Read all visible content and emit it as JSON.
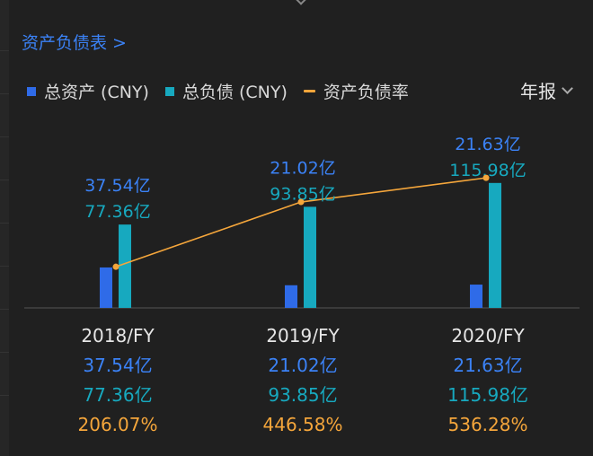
{
  "section": {
    "title": "资产负债表 >",
    "period_selector": "年报"
  },
  "legend": [
    {
      "label": "总资产 (CNY)",
      "color": "#2f6be8",
      "kind": "bar"
    },
    {
      "label": "总负债 (CNY)",
      "color": "#17a9bf",
      "kind": "bar"
    },
    {
      "label": "资产负债率",
      "color": "#f5a63b",
      "kind": "line"
    }
  ],
  "chart_data": {
    "type": "bar",
    "categories": [
      "2018/FY",
      "2019/FY",
      "2020/FY"
    ],
    "series": [
      {
        "name": "总资产 (CNY)",
        "values": [
          37.54,
          21.02,
          21.63
        ],
        "labels": [
          "37.54亿",
          "21.02亿",
          "21.63亿"
        ],
        "color": "#2f6be8"
      },
      {
        "name": "总负债 (CNY)",
        "values": [
          77.36,
          93.85,
          115.98
        ],
        "labels": [
          "77.36亿",
          "93.85亿",
          "115.98亿"
        ],
        "color": "#17a9bf"
      },
      {
        "name": "资产负债率",
        "type": "line",
        "values": [
          206.07,
          446.58,
          536.28
        ],
        "labels": [
          "206.07%",
          "446.58%",
          "536.28%"
        ],
        "color": "#f5a63b"
      }
    ]
  }
}
